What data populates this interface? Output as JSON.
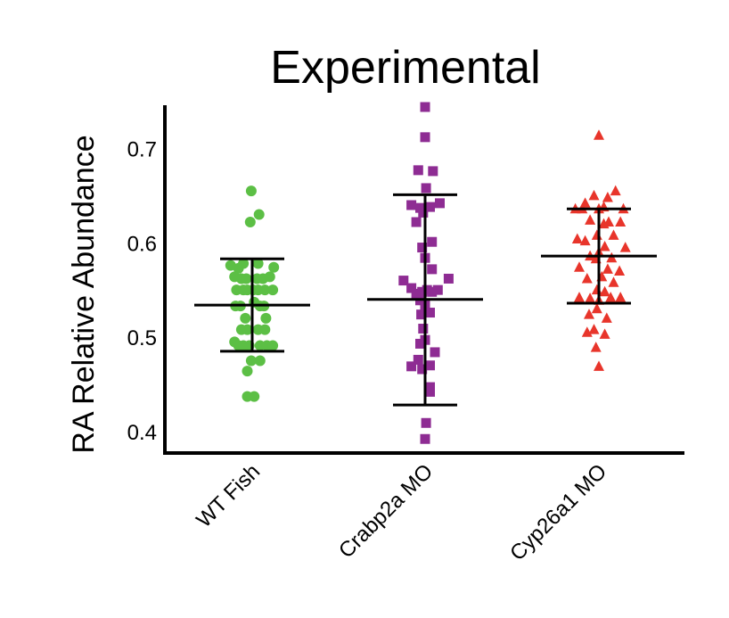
{
  "chart_data": {
    "type": "scatter",
    "title": "Experimental",
    "ylabel": "RA Relative Abundance",
    "xlabel": "",
    "ylim": [
      0.38,
      0.745
    ],
    "yticks": [
      0.4,
      0.5,
      0.6,
      0.7
    ],
    "yticklabels": [
      "0.4",
      "0.5",
      "0.6",
      "0.7"
    ],
    "categories": [
      "WT Fish",
      "Crabp2a MO",
      "Cyp26a1 MO"
    ],
    "grid": false,
    "legend": "none",
    "series": [
      {
        "category": "WT Fish",
        "marker": "circle",
        "color": "#5cbf45",
        "mean": 0.535,
        "error_low": 0.486,
        "error_high": 0.584,
        "points": [
          [
            -0.01,
            0.656
          ],
          [
            0.07,
            0.631
          ],
          [
            -0.02,
            0.623
          ],
          [
            -0.22,
            0.577
          ],
          [
            -0.14,
            0.574
          ],
          [
            -0.09,
            0.579
          ],
          [
            0.06,
            0.579
          ],
          [
            0.22,
            0.575
          ],
          [
            -0.18,
            0.565
          ],
          [
            -0.11,
            0.563
          ],
          [
            -0.06,
            0.563
          ],
          [
            0.05,
            0.563
          ],
          [
            0.11,
            0.563
          ],
          [
            0.18,
            0.565
          ],
          [
            -0.16,
            0.551
          ],
          [
            -0.09,
            0.551
          ],
          [
            -0.05,
            0.551
          ],
          [
            0.01,
            0.551
          ],
          [
            0.06,
            0.551
          ],
          [
            0.13,
            0.551
          ],
          [
            0.21,
            0.551
          ],
          [
            -0.17,
            0.534
          ],
          [
            -0.12,
            0.534
          ],
          [
            0.02,
            0.538
          ],
          [
            0.08,
            0.534
          ],
          [
            0.12,
            0.534
          ],
          [
            -0.07,
            0.521
          ],
          [
            0.14,
            0.521
          ],
          [
            -0.11,
            0.509
          ],
          [
            -0.05,
            0.509
          ],
          [
            0.06,
            0.509
          ],
          [
            0.13,
            0.509
          ],
          [
            -0.18,
            0.496
          ],
          [
            -0.14,
            0.492
          ],
          [
            -0.09,
            0.492
          ],
          [
            -0.03,
            0.492
          ],
          [
            0.08,
            0.492
          ],
          [
            0.15,
            0.492
          ],
          [
            0.21,
            0.492
          ],
          [
            -0.01,
            0.476
          ],
          [
            0.08,
            0.476
          ],
          [
            -0.05,
            0.465
          ],
          [
            -0.05,
            0.438
          ],
          [
            0.02,
            0.438
          ]
        ]
      },
      {
        "category": "Crabp2a MO",
        "marker": "square",
        "color": "#8e2c93",
        "mean": 0.541,
        "error_low": 0.429,
        "error_high": 0.652,
        "points": [
          [
            0.0,
            0.745
          ],
          [
            0.0,
            0.713
          ],
          [
            -0.07,
            0.678
          ],
          [
            0.08,
            0.677
          ],
          [
            0.01,
            0.659
          ],
          [
            -0.14,
            0.641
          ],
          [
            -0.05,
            0.638
          ],
          [
            0.05,
            0.639
          ],
          [
            0.15,
            0.643
          ],
          [
            -0.02,
            0.633
          ],
          [
            -0.09,
            0.623
          ],
          [
            -0.03,
            0.596
          ],
          [
            0.07,
            0.602
          ],
          [
            0.0,
            0.585
          ],
          [
            0.07,
            0.573
          ],
          [
            -0.22,
            0.561
          ],
          [
            0.24,
            0.563
          ],
          [
            -0.14,
            0.553
          ],
          [
            -0.09,
            0.547
          ],
          [
            -0.03,
            0.549
          ],
          [
            0.02,
            0.551
          ],
          [
            0.07,
            0.549
          ],
          [
            0.13,
            0.551
          ],
          [
            -0.05,
            0.54
          ],
          [
            0.0,
            0.535
          ],
          [
            -0.04,
            0.525
          ],
          [
            0.05,
            0.527
          ],
          [
            -0.02,
            0.51
          ],
          [
            0.0,
            0.498
          ],
          [
            -0.05,
            0.494
          ],
          [
            0.1,
            0.485
          ],
          [
            -0.07,
            0.477
          ],
          [
            0.05,
            0.471
          ],
          [
            -0.14,
            0.47
          ],
          [
            -0.03,
            0.467
          ],
          [
            0.05,
            0.448
          ],
          [
            0.05,
            0.443
          ],
          [
            0.01,
            0.41
          ],
          [
            0.0,
            0.393
          ]
        ]
      },
      {
        "category": "Cyp26a1 MO",
        "marker": "triangle",
        "color": "#e8352b",
        "mean": 0.587,
        "error_low": 0.537,
        "error_high": 0.637,
        "points": [
          [
            0.0,
            0.715
          ],
          [
            0.17,
            0.656
          ],
          [
            -0.05,
            0.651
          ],
          [
            0.09,
            0.649
          ],
          [
            -0.14,
            0.643
          ],
          [
            0.05,
            0.639
          ],
          [
            -0.24,
            0.637
          ],
          [
            -0.17,
            0.637
          ],
          [
            0.0,
            0.637
          ],
          [
            0.25,
            0.637
          ],
          [
            -0.09,
            0.625
          ],
          [
            0.1,
            0.623
          ],
          [
            0.05,
            0.621
          ],
          [
            0.22,
            0.623
          ],
          [
            -0.02,
            0.609
          ],
          [
            0.15,
            0.609
          ],
          [
            -0.22,
            0.605
          ],
          [
            -0.14,
            0.603
          ],
          [
            0.0,
            0.591
          ],
          [
            0.06,
            0.597
          ],
          [
            0.27,
            0.596
          ],
          [
            -0.09,
            0.587
          ],
          [
            -0.03,
            0.584
          ],
          [
            0.13,
            0.585
          ],
          [
            -0.2,
            0.575
          ],
          [
            0.09,
            0.573
          ],
          [
            0.21,
            0.571
          ],
          [
            0.03,
            0.565
          ],
          [
            -0.12,
            0.563
          ],
          [
            0.15,
            0.559
          ],
          [
            -0.02,
            0.551
          ],
          [
            0.06,
            0.549
          ],
          [
            -0.2,
            0.543
          ],
          [
            -0.09,
            0.542
          ],
          [
            0.0,
            0.54
          ],
          [
            0.12,
            0.543
          ],
          [
            0.22,
            0.543
          ],
          [
            -0.02,
            0.531
          ],
          [
            -0.1,
            0.525
          ],
          [
            0.08,
            0.521
          ],
          [
            -0.05,
            0.509
          ],
          [
            -0.12,
            0.506
          ],
          [
            0.06,
            0.504
          ],
          [
            -0.03,
            0.49
          ],
          [
            0.0,
            0.47
          ]
        ]
      }
    ]
  }
}
